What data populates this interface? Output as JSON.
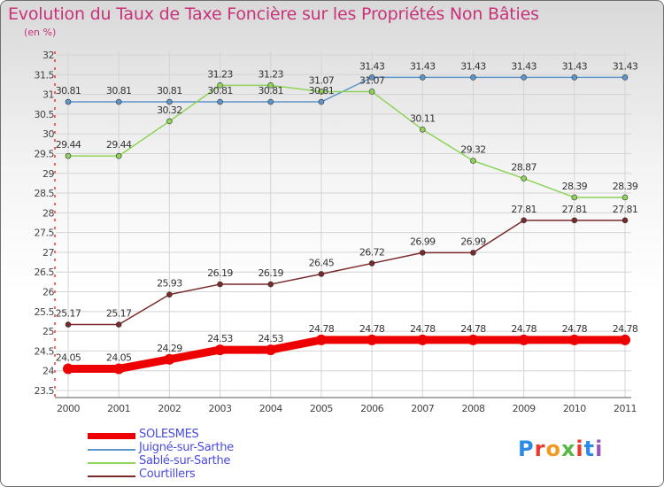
{
  "header": {
    "title": "Evolution du Taux de Taxe Foncière sur les Propriétés Non Bâties",
    "unit": "(en %)"
  },
  "logo": {
    "text": "Proxiti",
    "colors": [
      "#2b8be6",
      "#e83b2d",
      "#f29a1f",
      "#58b847",
      "#e83b2d",
      "#2b8be6",
      "#9b59b6"
    ]
  },
  "colors": {
    "title": "#c8327a",
    "legend_text": "#4b4bdc",
    "grid": "#d4d4d4"
  },
  "chart_data": {
    "type": "line",
    "title": "Evolution du Taux de Taxe Foncière sur les Propriétés Non Bâties",
    "ylabel": "(en %)",
    "x": [
      "2000",
      "2001",
      "2002",
      "2003",
      "2004",
      "2005",
      "2006",
      "2007",
      "2008",
      "2009",
      "2010",
      "2011"
    ],
    "ylim": [
      23.5,
      32
    ],
    "yticks": [
      23.5,
      24,
      24.5,
      25,
      25.5,
      26,
      26.5,
      27,
      27.5,
      28,
      28.5,
      29,
      29.5,
      30,
      30.5,
      31,
      31.5,
      32
    ],
    "ytick_labels": [
      "23.5",
      "24",
      "24.5",
      "25",
      "25.5",
      "26",
      "26.5",
      "27",
      "27.5",
      "28",
      "28.5",
      "29",
      "29.5",
      "30",
      "30.5",
      "31",
      "31.5",
      "32"
    ],
    "grid": true,
    "legend_position": "bottom-left",
    "series": [
      {
        "name": "SOLESMES",
        "color": "#ee0000",
        "values": [
          24.05,
          24.05,
          24.29,
          24.53,
          24.53,
          24.78,
          24.78,
          24.78,
          24.78,
          24.78,
          24.78,
          24.78
        ],
        "labels": [
          "24.05",
          "24.05",
          "24.29",
          "24.53",
          "24.53",
          "24.78",
          "24.78",
          "24.78",
          "24.78",
          "24.78",
          "24.78",
          "24.78"
        ]
      },
      {
        "name": "Juigné-sur-Sarthe",
        "color": "#5e96cc",
        "values": [
          30.81,
          30.81,
          30.81,
          30.81,
          30.81,
          30.81,
          31.43,
          31.43,
          31.43,
          31.43,
          31.43,
          31.43
        ],
        "labels": [
          "30.81",
          "30.81",
          "30.81",
          "30.81",
          "30.81",
          "30.81",
          "31.43",
          "31.43",
          "31.43",
          "31.43",
          "31.43",
          "31.43"
        ]
      },
      {
        "name": "Sablé-sur-Sarthe",
        "color": "#8fd45a",
        "values": [
          29.44,
          29.44,
          30.32,
          31.23,
          31.23,
          31.07,
          31.07,
          30.11,
          29.32,
          28.87,
          28.39,
          28.39
        ],
        "labels": [
          "29.44",
          "29.44",
          "30.32",
          "31.23",
          "31.23",
          "31.07",
          "31.07",
          "30.11",
          "29.32",
          "28.87",
          "28.39",
          "28.39"
        ]
      },
      {
        "name": "Courtillers",
        "color": "#7a2a2a",
        "values": [
          25.17,
          25.17,
          25.93,
          26.19,
          26.19,
          26.45,
          26.72,
          26.99,
          26.99,
          27.81,
          27.81,
          27.81
        ],
        "labels": [
          "25.17",
          "25.17",
          "25.93",
          "26.19",
          "26.19",
          "26.45",
          "26.72",
          "26.99",
          "26.99",
          "27.81",
          "27.81",
          "27.81"
        ]
      }
    ]
  }
}
